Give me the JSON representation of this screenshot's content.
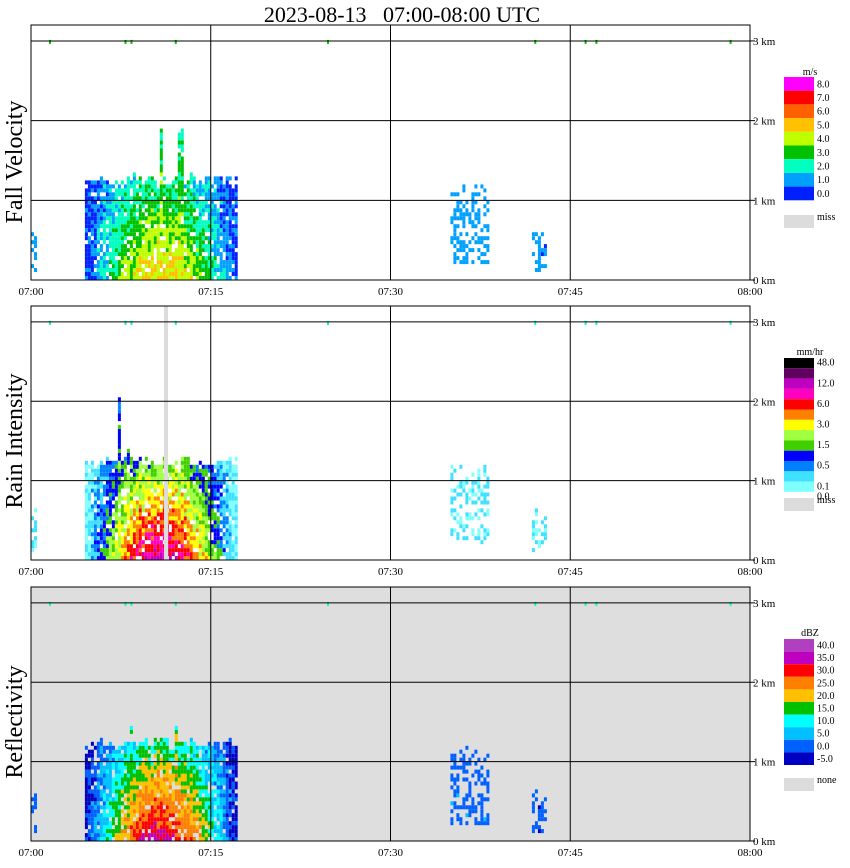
{
  "title": "2023-08-13   07:00-08:00 UTC",
  "time_ticks": [
    "07:00",
    "07:15",
    "07:30",
    "07:45",
    "08:00"
  ],
  "height_ticks": [
    "1 km",
    "2 km",
    "3 km"
  ],
  "zero_tick": "0 km",
  "panels": [
    {
      "ylabel": "Fall Velocity",
      "background": "#ffffff",
      "scale_unit": "m/s",
      "scale": [
        {
          "label": "8.0",
          "color": "#ff00ff"
        },
        {
          "label": "7.0",
          "color": "#ff0000"
        },
        {
          "label": "6.0",
          "color": "#ff6000"
        },
        {
          "label": "5.0",
          "color": "#ffc000"
        },
        {
          "label": "4.0",
          "color": "#c0ff00"
        },
        {
          "label": "3.0",
          "color": "#00c000"
        },
        {
          "label": "2.0",
          "color": "#00ffc0"
        },
        {
          "label": "1.0",
          "color": "#00a0ff"
        },
        {
          "label": "0.0",
          "color": "#0020ff"
        }
      ],
      "miss_label": "miss"
    },
    {
      "ylabel": "Rain Intensity",
      "background": "#ffffff",
      "scale_unit": "mm/hr",
      "scale": [
        {
          "label": "48.0",
          "color": "#000000"
        },
        {
          "label": "",
          "color": "#600060"
        },
        {
          "label": "12.0",
          "color": "#c000c0"
        },
        {
          "label": "",
          "color": "#ff00c0"
        },
        {
          "label": "6.0",
          "color": "#ff0000"
        },
        {
          "label": "",
          "color": "#ff8000"
        },
        {
          "label": "3.0",
          "color": "#ffff00"
        },
        {
          "label": "",
          "color": "#a0ff40"
        },
        {
          "label": "1.5",
          "color": "#40d000"
        },
        {
          "label": "",
          "color": "#0000ff"
        },
        {
          "label": "0.5",
          "color": "#0080ff"
        },
        {
          "label": "",
          "color": "#40e0ff"
        },
        {
          "label": "0.1",
          "color": "#80ffff"
        },
        {
          "label": "0.0",
          "color": "#ffffff"
        }
      ],
      "miss_label": "miss"
    },
    {
      "ylabel": "Reflectivity",
      "background": "#dedede",
      "scale_unit": "dBZ",
      "scale": [
        {
          "label": "40.0",
          "color": "#b040c0"
        },
        {
          "label": "35.0",
          "color": "#c000c0"
        },
        {
          "label": "30.0",
          "color": "#ff0000"
        },
        {
          "label": "25.0",
          "color": "#ff8000"
        },
        {
          "label": "20.0",
          "color": "#ffc000"
        },
        {
          "label": "15.0",
          "color": "#00c000"
        },
        {
          "label": "10.0",
          "color": "#00ffff"
        },
        {
          "label": "5.0",
          "color": "#00c0ff"
        },
        {
          "label": "0.0",
          "color": "#0060ff"
        },
        {
          "label": "-5.0",
          "color": "#0000c0"
        }
      ],
      "miss_label": "none"
    }
  ],
  "chart_data": {
    "type": "heatmap",
    "title": "2023-08-13   07:00-08:00 UTC",
    "x_range": [
      "07:00",
      "08:00"
    ],
    "x_ticks": [
      "07:00",
      "07:15",
      "07:30",
      "07:45",
      "08:00"
    ],
    "y_range_km": [
      0,
      3.2
    ],
    "y_ticks_km": [
      0,
      1,
      2,
      3
    ],
    "grid": true,
    "legend": "right",
    "variables": [
      {
        "name": "Fall Velocity",
        "unit": "m/s",
        "events": [
          {
            "t_start": "07:04",
            "t_end": "07:17",
            "top_km": 1.2,
            "peak_top_km": 2.1,
            "typical_value": 4.0,
            "max_value": 7.0
          },
          {
            "t_start": "07:35",
            "t_end": "07:38",
            "top_km": 1.2,
            "typical_value": 1.0
          },
          {
            "t_start": "07:42",
            "t_end": "07:43",
            "top_km": 0.6,
            "typical_value": 1.0
          }
        ]
      },
      {
        "name": "Rain Intensity",
        "unit": "mm/hr",
        "events": [
          {
            "t_start": "07:04",
            "t_end": "07:17",
            "top_km": 1.3,
            "peak_top_km": 2.0,
            "typical_value": 6.0,
            "max_value": 48.0
          },
          {
            "t_start": "07:35",
            "t_end": "07:38",
            "top_km": 1.2,
            "typical_value": 0.1
          }
        ]
      },
      {
        "name": "Reflectivity",
        "unit": "dBZ",
        "events": [
          {
            "t_start": "07:04",
            "t_end": "07:17",
            "top_km": 1.3,
            "peak_top_km": 2.1,
            "typical_value": 25.0,
            "max_value": 40.0
          },
          {
            "t_start": "07:35",
            "t_end": "07:38",
            "top_km": 1.2,
            "typical_value": 0.0
          }
        ]
      }
    ]
  }
}
